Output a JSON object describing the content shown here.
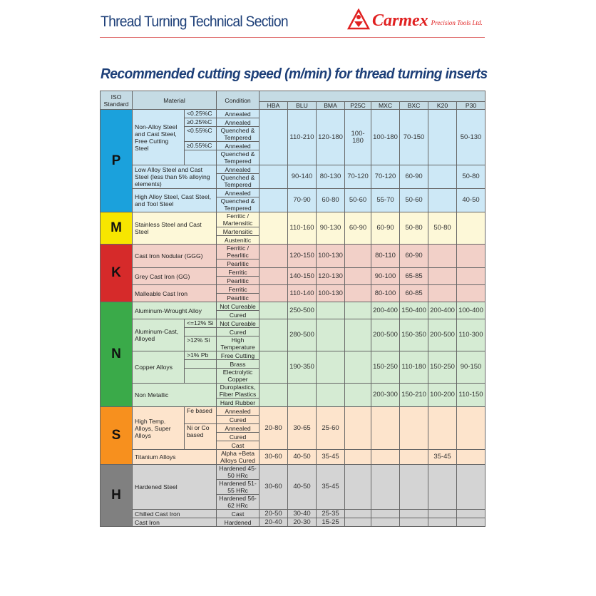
{
  "header": {
    "title": "Thread Turning Technical Section",
    "brand": "Carmex",
    "brand_sub": "Precision Tools Ltd.",
    "subtitle": "Recommended cutting speed (m/min) for thread turning inserts",
    "title_color": "#1d3f78",
    "brand_color": "#e02020"
  },
  "table": {
    "col_iso": "ISO Standard",
    "col_material": "Material",
    "col_condition": "Condition",
    "grades": [
      "HBA",
      "BLU",
      "BMA",
      "P25C",
      "MXC",
      "BXC",
      "K20",
      "P30"
    ]
  },
  "groups": [
    {
      "letter": "P",
      "color": "#1ba1dc",
      "bg": "#cde8f6",
      "materials": [
        {
          "name": "Non-Alloy Steel and Cast Steel, Free Cutting Steel",
          "subs": [
            {
              "label": "<0.25%C",
              "rows": 1
            },
            {
              "label": "≥0.25%C",
              "rows": 1
            },
            {
              "label": "<0.55%C",
              "rows": 1
            },
            {
              "label": "≥0.55%C",
              "rows": 1
            },
            {
              "label": "",
              "rows": 1
            }
          ],
          "conditions": [
            "Annealed",
            "Annealed",
            "Quenched & Tempered",
            "Annealed",
            "Quenched & Tempered"
          ],
          "speeds": [
            "",
            "110-210",
            "120-180",
            "100-180",
            "100-180",
            "70-150",
            "",
            "50-130"
          ]
        },
        {
          "name": "Low Alloy Steel and Cast Steel (less than 5% alloying elements)",
          "conditions": [
            "Annealed",
            "Quenched & Tempered"
          ],
          "speeds": [
            "",
            "90-140",
            "80-130",
            "70-120",
            "70-120",
            "60-90",
            "",
            "50-80"
          ]
        },
        {
          "name": "High Alloy Steel, Cast Steel, and Tool Steel",
          "conditions": [
            "Annealed",
            "Quenched & Tempered"
          ],
          "speeds": [
            "",
            "70-90",
            "60-80",
            "50-60",
            "55-70",
            "50-60",
            "",
            "40-50"
          ]
        }
      ]
    },
    {
      "letter": "M",
      "color": "#f7e600",
      "bg": "#fdf8d8",
      "materials": [
        {
          "name": "Stainless Steel and Cast Steel",
          "conditions": [
            "Ferritic / Martensitic",
            "Martensitic",
            "Austenitic"
          ],
          "speeds": [
            "",
            "110-160",
            "90-130",
            "60-90",
            "60-90",
            "50-80",
            "50-80",
            ""
          ]
        }
      ]
    },
    {
      "letter": "K",
      "color": "#d62a2a",
      "bg": "#f2d0c8",
      "materials": [
        {
          "name": "Cast Iron Nodular (GGG)",
          "conditions": [
            "Ferritic / Pearlitic",
            "Pearlitic"
          ],
          "speeds": [
            "",
            "120-150",
            "100-130",
            "",
            "80-110",
            "60-90",
            "",
            ""
          ]
        },
        {
          "name": "Grey Cast Iron (GG)",
          "conditions": [
            "Ferritic",
            "Pearlitic"
          ],
          "speeds": [
            "",
            "140-150",
            "120-130",
            "",
            "90-100",
            "65-85",
            "",
            ""
          ]
        },
        {
          "name": "Malleable Cast Iron",
          "conditions": [
            "Ferritic",
            "Pearlitic"
          ],
          "speeds": [
            "",
            "110-140",
            "100-130",
            "",
            "80-100",
            "60-85",
            "",
            ""
          ]
        }
      ]
    },
    {
      "letter": "N",
      "color": "#3aaa49",
      "bg": "#d5ebd3",
      "materials": [
        {
          "name": "Aluminum-Wrought Alloy",
          "conditions": [
            "Not Cureable",
            "Cured"
          ],
          "speeds": [
            "",
            "250-500",
            "",
            "",
            "200-400",
            "150-400",
            "200-400",
            "100-400"
          ]
        },
        {
          "name": "Aluminum-Cast, Alloyed",
          "subs": [
            {
              "label": "<=12% Si",
              "rows": 1
            },
            {
              "label": "",
              "rows": 1
            },
            {
              "label": ">12% Si",
              "rows": 1
            }
          ],
          "conditions": [
            "Not Cureable",
            "Cured",
            "High Temperature"
          ],
          "speeds": [
            "",
            "280-500",
            "",
            "",
            "200-500",
            "150-350",
            "200-500",
            "110-300"
          ]
        },
        {
          "name": "Copper Alloys",
          "subs": [
            {
              "label": ">1% Pb",
              "rows": 1
            },
            {
              "label": "",
              "rows": 1
            },
            {
              "label": "",
              "rows": 1
            }
          ],
          "conditions": [
            "Free Cutting",
            "Brass",
            "Electrolytic Copper"
          ],
          "speeds": [
            "",
            "190-350",
            "",
            "",
            "150-250",
            "110-180",
            "150-250",
            "90-150"
          ]
        },
        {
          "name": "Non Metallic",
          "conditions": [
            "Duroplastics, Fiber Plastics",
            "Hard Rubber"
          ],
          "speeds": [
            "",
            "",
            "",
            "",
            "200-300",
            "150-210",
            "100-200",
            "110-150"
          ]
        }
      ]
    },
    {
      "letter": "S",
      "color": "#f7901e",
      "bg": "#fde4cc",
      "materials": [
        {
          "name": "High Temp. Alloys, Super Alloys",
          "subs": [
            {
              "label": "Fe based",
              "rows": 2
            },
            {
              "label": "Ni or Co based",
              "rows": 3
            }
          ],
          "conditions": [
            "Annealed",
            "Cured",
            "Annealed",
            "Cured",
            "Cast"
          ],
          "speeds": [
            "20-80",
            "30-65",
            "25-60",
            "",
            "",
            "",
            "",
            ""
          ]
        },
        {
          "name": "Titanium Alloys",
          "conditions": [
            "Alpha +Beta Alloys Cured"
          ],
          "speeds": [
            "30-60",
            "40-50",
            "35-45",
            "",
            "",
            "",
            "35-45",
            ""
          ]
        }
      ]
    },
    {
      "letter": "H",
      "color": "#808080",
      "bg": "#d4d4d4",
      "materials": [
        {
          "name": "Hardened Steel",
          "conditions": [
            "Hardened 45-50 HRc",
            "Hardened 51-55 HRc",
            "Hardened 56-62 HRc"
          ],
          "speeds": [
            "30-60",
            "40-50",
            "35-45",
            "",
            "",
            "",
            "",
            ""
          ]
        },
        {
          "name": "Chilled Cast Iron",
          "conditions": [
            "Cast"
          ],
          "speeds": [
            "20-50",
            "30-40",
            "25-35",
            "",
            "",
            "",
            "",
            ""
          ]
        },
        {
          "name": "Cast Iron",
          "conditions": [
            "Hardened"
          ],
          "speeds": [
            "20-40",
            "20-30",
            "15-25",
            "",
            "",
            "",
            "",
            ""
          ]
        }
      ]
    }
  ]
}
